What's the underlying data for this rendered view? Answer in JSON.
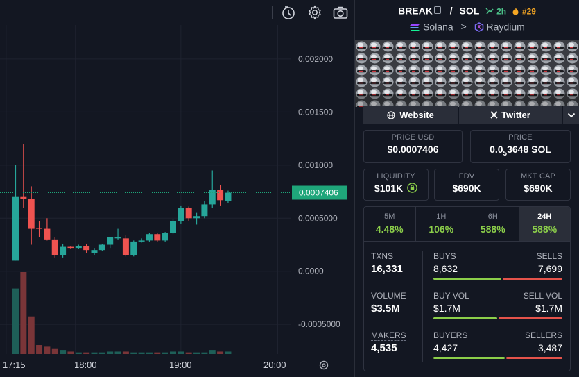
{
  "colors": {
    "background": "#131722",
    "up": "#26a69a",
    "down": "#ef5350",
    "accent_green": "#8ccf4a",
    "sell_red": "#e5534b",
    "price_tag": "#1fa67a"
  },
  "toolbar": {
    "icons": [
      "time-travel-icon",
      "gear-icon",
      "camera-icon"
    ]
  },
  "chart_data": {
    "type": "candlestick",
    "price_axis": [
      "0.002000",
      "0.001500",
      "0.001000",
      "0.0005000",
      "0.0000",
      "-0.0005000"
    ],
    "time_axis": [
      "17:15",
      "18:00",
      "19:00",
      "20:00"
    ],
    "current_price_label": "0.0007406",
    "ylim": [
      -0.00078,
      0.00232
    ],
    "candles": [
      {
        "o": 0.0001,
        "h": 0.001,
        "l": 0.0001,
        "c": 0.0007
      },
      {
        "o": 0.0007,
        "h": 0.0012,
        "l": 0.0006,
        "c": 0.00068
      },
      {
        "o": 0.00068,
        "h": 0.0008,
        "l": 0.00025,
        "c": 0.0004
      },
      {
        "o": 0.00041,
        "h": 0.00047,
        "l": 0.00032,
        "c": 0.0004
      },
      {
        "o": 0.0004,
        "h": 0.0005,
        "l": 0.00029,
        "c": 0.0003
      },
      {
        "o": 0.0003,
        "h": 0.00032,
        "l": 0.00013,
        "c": 0.00015
      },
      {
        "o": 0.00015,
        "h": 0.00026,
        "l": 0.00013,
        "c": 0.00023
      },
      {
        "o": 0.00023,
        "h": 0.00024,
        "l": 0.00021,
        "c": 0.00022
      },
      {
        "o": 0.00022,
        "h": 0.00025,
        "l": 0.00021,
        "c": 0.00024
      },
      {
        "o": 0.00024,
        "h": 0.00026,
        "l": 0.00017,
        "c": 0.0002
      },
      {
        "o": 0.00017,
        "h": 0.00022,
        "l": 0.00015,
        "c": 0.0002
      },
      {
        "o": 0.0002,
        "h": 0.00026,
        "l": 0.00019,
        "c": 0.00025
      },
      {
        "o": 0.00025,
        "h": 0.00032,
        "l": 0.00022,
        "c": 0.00032
      },
      {
        "o": 0.00032,
        "h": 0.0004,
        "l": 0.0003,
        "c": 0.00032
      },
      {
        "o": 0.00031,
        "h": 0.00034,
        "l": 0.00014,
        "c": 0.00015
      },
      {
        "o": 0.00015,
        "h": 0.00029,
        "l": 0.00014,
        "c": 0.00028
      },
      {
        "o": 0.00028,
        "h": 0.00031,
        "l": 0.00027,
        "c": 0.00029
      },
      {
        "o": 0.00029,
        "h": 0.00036,
        "l": 0.00028,
        "c": 0.00035
      },
      {
        "o": 0.00035,
        "h": 0.00036,
        "l": 0.00028,
        "c": 0.00029
      },
      {
        "o": 0.00029,
        "h": 0.00037,
        "l": 0.00028,
        "c": 0.00036
      },
      {
        "o": 0.00036,
        "h": 0.00049,
        "l": 0.00035,
        "c": 0.00047
      },
      {
        "o": 0.00047,
        "h": 0.00062,
        "l": 0.00045,
        "c": 0.0006
      },
      {
        "o": 0.0006,
        "h": 0.00061,
        "l": 0.00047,
        "c": 0.0005
      },
      {
        "o": 0.0005,
        "h": 0.00055,
        "l": 0.00044,
        "c": 0.00052
      },
      {
        "o": 0.00052,
        "h": 0.00066,
        "l": 0.0005,
        "c": 0.00063
      },
      {
        "o": 0.00063,
        "h": 0.00095,
        "l": 0.0006,
        "c": 0.00077
      },
      {
        "o": 0.00077,
        "h": 0.00081,
        "l": 0.00062,
        "c": 0.00067
      },
      {
        "o": 0.00066,
        "h": 0.00076,
        "l": 0.00064,
        "c": 0.00074
      }
    ],
    "volume": [
      0.8,
      1.0,
      0.46,
      0.11,
      0.09,
      0.07,
      0.05,
      0.03,
      0.02,
      0.02,
      0.02,
      0.02,
      0.03,
      0.03,
      0.03,
      0.02,
      0.02,
      0.02,
      0.02,
      0.02,
      0.03,
      0.03,
      0.02,
      0.02,
      0.02,
      0.05,
      0.03,
      0.03
    ]
  },
  "pair": {
    "base": "BREAK",
    "separator": "/",
    "quote": "SOL",
    "trend": "2h",
    "rank": "#29",
    "chain": "Solana",
    "chevron": ">",
    "dex": "Raydium"
  },
  "links": {
    "website": "Website",
    "twitter": "Twitter"
  },
  "stats": {
    "price_usd_label": "PRICE USD",
    "price_usd": "$0.0007406",
    "price_label": "PRICE",
    "price_sol_prefix": "0.0",
    "price_sol_sub": "5",
    "price_sol_rest": "3648 SOL",
    "liquidity_label": "LIQUIDITY",
    "liquidity": "$101K",
    "fdv_label": "FDV",
    "fdv": "$690K",
    "mktcap_label": "MKT CAP",
    "mktcap": "$690K"
  },
  "timeframes": [
    {
      "label": "5M",
      "change": "4.48%"
    },
    {
      "label": "1H",
      "change": "106%"
    },
    {
      "label": "6H",
      "change": "588%"
    },
    {
      "label": "24H",
      "change": "588%"
    }
  ],
  "txns": {
    "txns_label": "TXNS",
    "txns": "16,331",
    "buys_label": "BUYS",
    "buys": "8,632",
    "sells_label": "SELLS",
    "sells": "7,699",
    "buys_ratio": 0.53,
    "volume_label": "VOLUME",
    "volume": "$3.5M",
    "buy_vol_label": "BUY VOL",
    "buy_vol": "$1.7M",
    "sell_vol_label": "SELL VOL",
    "sell_vol": "$1.7M",
    "buy_vol_ratio": 0.5,
    "makers_label": "MAKERS",
    "makers": "4,535",
    "buyers_label": "BUYERS",
    "buyers": "4,427",
    "sellers_label": "SELLERS",
    "sellers": "3,487",
    "buyers_ratio": 0.56
  }
}
